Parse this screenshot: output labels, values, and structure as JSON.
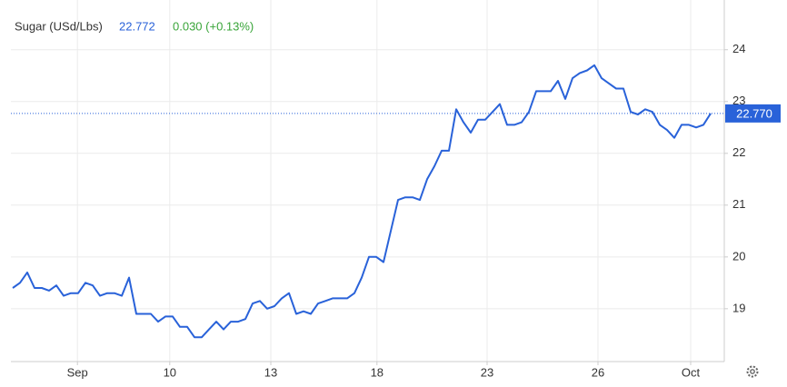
{
  "chart_data": {
    "type": "line",
    "instrument": "Sugar (USd/Lbs)",
    "last": "22.772",
    "change": "0.030 (+0.13%)",
    "color": "#2962d9",
    "grid": true,
    "price_line": {
      "value": 22.77,
      "label": "22.770"
    },
    "xlim": [
      -0.25,
      97.875
    ],
    "xticks": [
      {
        "value": 8.9,
        "label": "Sep"
      },
      {
        "value": 21.6,
        "label": "10"
      },
      {
        "value": 35.5,
        "label": "13"
      },
      {
        "value": 50.1,
        "label": "18"
      },
      {
        "value": 65.25,
        "label": "23"
      },
      {
        "value": 80.5,
        "label": "26"
      },
      {
        "value": 93.25,
        "label": "Oct"
      }
    ],
    "ylim": [
      17.98,
      24.96
    ],
    "yticks": [
      19,
      20,
      21,
      22,
      23,
      24
    ],
    "values": [
      19.4,
      19.5,
      19.7,
      19.4,
      19.4,
      19.35,
      19.45,
      19.25,
      19.3,
      19.3,
      19.5,
      19.45,
      19.25,
      19.3,
      19.3,
      19.25,
      19.6,
      18.9,
      18.9,
      18.9,
      18.75,
      18.85,
      18.85,
      18.65,
      18.65,
      18.45,
      18.45,
      18.6,
      18.75,
      18.6,
      18.75,
      18.75,
      18.8,
      19.1,
      19.15,
      19.0,
      19.05,
      19.2,
      19.3,
      18.9,
      18.95,
      18.9,
      19.1,
      19.15,
      19.2,
      19.2,
      19.2,
      19.3,
      19.6,
      20.0,
      20.0,
      19.9,
      20.5,
      21.1,
      21.15,
      21.15,
      21.1,
      21.5,
      21.75,
      22.05,
      22.05,
      22.85,
      22.6,
      22.4,
      22.65,
      22.65,
      22.8,
      22.95,
      22.55,
      22.55,
      22.6,
      22.8,
      23.2,
      23.2,
      23.2,
      23.4,
      23.05,
      23.45,
      23.55,
      23.6,
      23.7,
      23.45,
      23.35,
      23.25,
      23.25,
      22.8,
      22.75,
      22.85,
      22.8,
      22.55,
      22.45,
      22.3,
      22.55,
      22.55,
      22.5,
      22.55,
      22.77
    ]
  }
}
